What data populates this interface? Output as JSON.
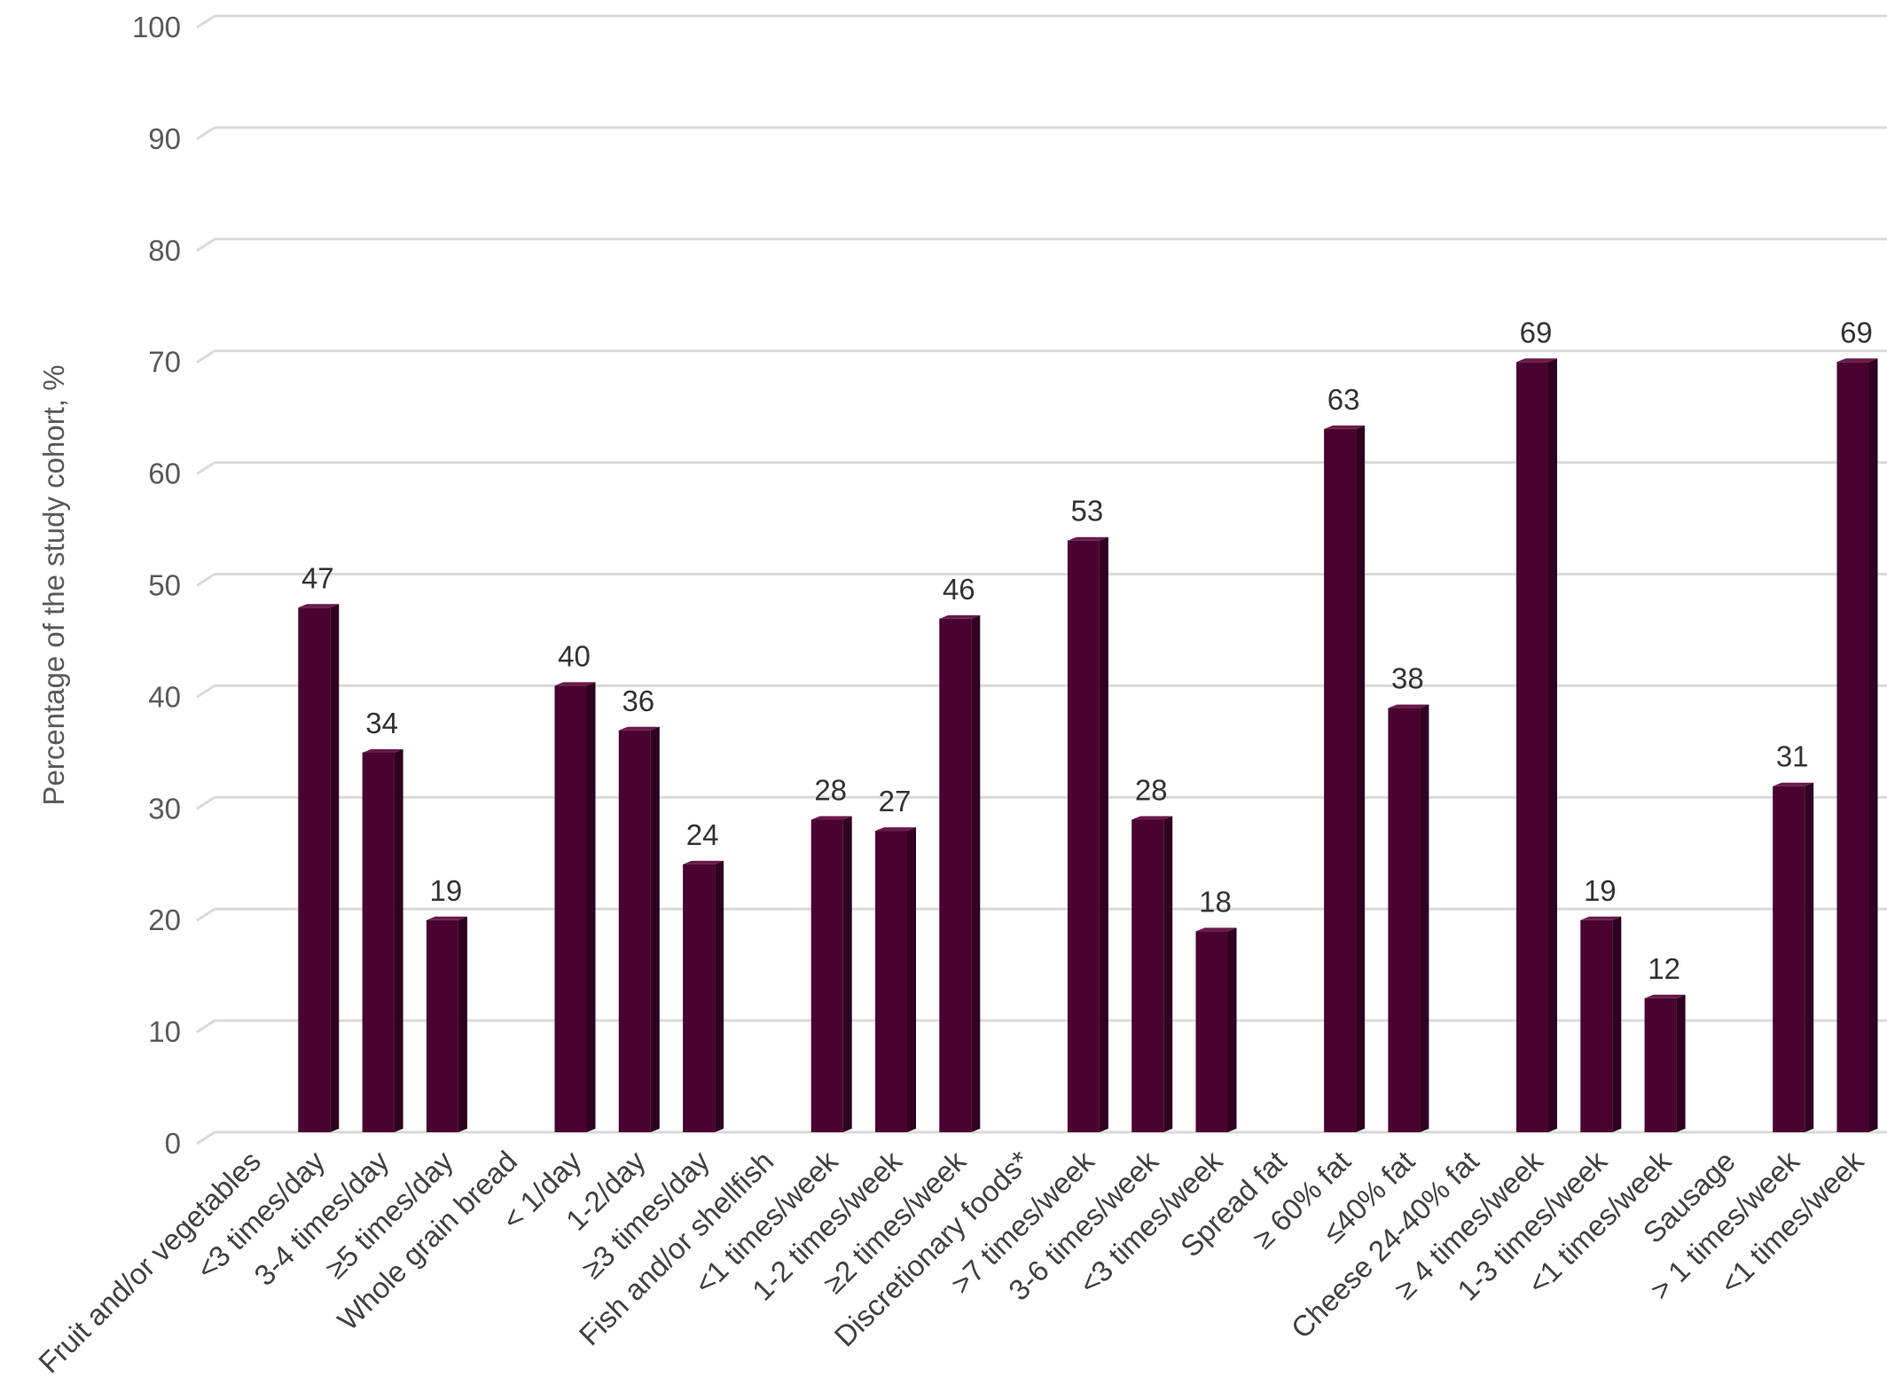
{
  "chart_data": {
    "type": "bar",
    "ylabel": "Percentage of the study cohort, %",
    "xlabel": "",
    "ylim": [
      0,
      100
    ],
    "yticks": [
      0,
      10,
      20,
      30,
      40,
      50,
      60,
      70,
      80,
      90,
      100
    ],
    "grid": true,
    "categories": [
      "Fruit and/or vegetables",
      "<3 times/day",
      "3-4 times/day",
      "≥5 times/day",
      "Whole grain bread",
      "< 1/day",
      "1-2/day",
      "≥3 times/day",
      "Fish and/or shellfish",
      "<1 times/week",
      "1-2 times/week",
      "≥2 times/week",
      "Discretionary foods*",
      ">7 times/week",
      "3-6 times/week",
      "<3 times/week",
      "Spread fat",
      "≥ 60% fat",
      "≤40% fat",
      "Cheese 24-40% fat",
      "≥ 4 times/week",
      "1-3 times/week",
      "<1 times/week",
      "Sausage",
      "> 1 times/week",
      "<1 times/week"
    ],
    "values": [
      null,
      47,
      34,
      19,
      null,
      40,
      36,
      24,
      null,
      28,
      27,
      46,
      null,
      53,
      28,
      18,
      null,
      63,
      38,
      null,
      69,
      19,
      12,
      null,
      31,
      69
    ],
    "bar_color": "#4a0330",
    "bar_side_color": "#2e0220",
    "bar_top_color": "#6b1a4d",
    "grid_color": "#d9d9d9"
  }
}
